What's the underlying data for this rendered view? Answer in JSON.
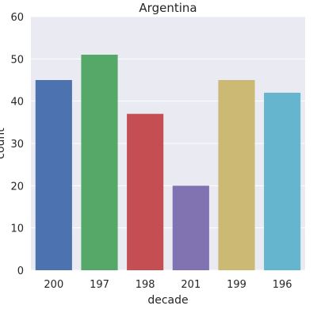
{
  "chart_data": {
    "type": "bar",
    "title": "Argentina",
    "xlabel": "decade",
    "ylabel": "count",
    "categories": [
      "200",
      "197",
      "198",
      "201",
      "199",
      "196"
    ],
    "values": [
      45,
      51,
      37,
      20,
      45,
      42
    ],
    "colors": [
      "#4c72b0",
      "#55a868",
      "#c44e52",
      "#8172b2",
      "#ccb974",
      "#64b5cd"
    ],
    "ylim": [
      0,
      60
    ],
    "yticks": [
      0,
      10,
      20,
      30,
      40,
      50,
      60
    ],
    "grid": true,
    "background": "#eaeaf2"
  }
}
